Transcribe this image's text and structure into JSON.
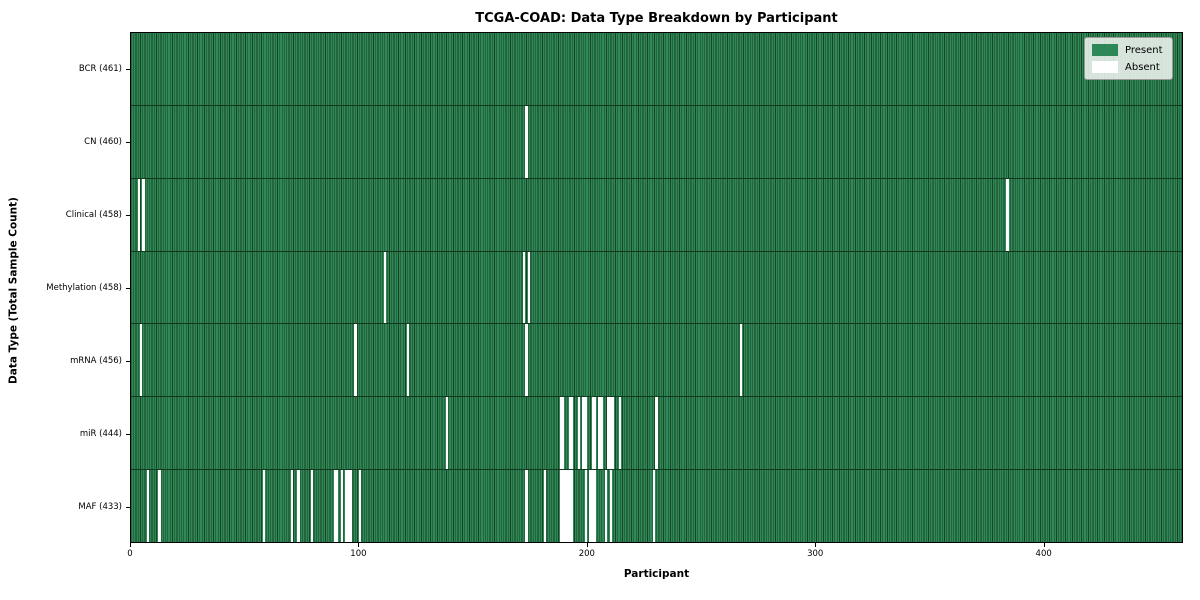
{
  "chart_data": {
    "type": "heatmap",
    "title": "TCGA-COAD: Data Type Breakdown by Participant",
    "xlabel": "Participant",
    "ylabel": "Data Type (Total Sample Count)",
    "n_participants": 461,
    "x_ticks": [
      0,
      100,
      200,
      300,
      400
    ],
    "legend": [
      {
        "label": "Present",
        "color": "#2e8757"
      },
      {
        "label": "Absent",
        "color": "#ffffff"
      }
    ],
    "colors": {
      "present": "#31875a",
      "present_edge": "#14471f",
      "absent": "#ffffff",
      "row_line": "#10381f"
    },
    "rows": [
      {
        "label": "BCR (461)",
        "total": 461,
        "absent": []
      },
      {
        "label": "CN (460)",
        "total": 460,
        "absent": [
          173
        ]
      },
      {
        "label": "Clinical (458)",
        "total": 458,
        "absent": [
          3,
          5,
          384
        ]
      },
      {
        "label": "Methylation (458)",
        "total": 458,
        "absent": [
          111,
          172,
          174
        ]
      },
      {
        "label": "mRNA (456)",
        "total": 456,
        "absent": [
          4,
          98,
          121,
          173,
          267
        ]
      },
      {
        "label": "miR (444)",
        "total": 444,
        "absent": [
          138,
          188,
          189,
          192,
          193,
          196,
          198,
          199,
          202,
          203,
          205,
          206,
          209,
          210,
          211,
          214,
          230
        ]
      },
      {
        "label": "MAF (433)",
        "total": 433,
        "absent": [
          7,
          12,
          58,
          70,
          73,
          79,
          89,
          90,
          92,
          94,
          95,
          96,
          100,
          173,
          181,
          188,
          189,
          190,
          191,
          192,
          193,
          199,
          201,
          202,
          203,
          208,
          210,
          229
        ]
      }
    ]
  }
}
